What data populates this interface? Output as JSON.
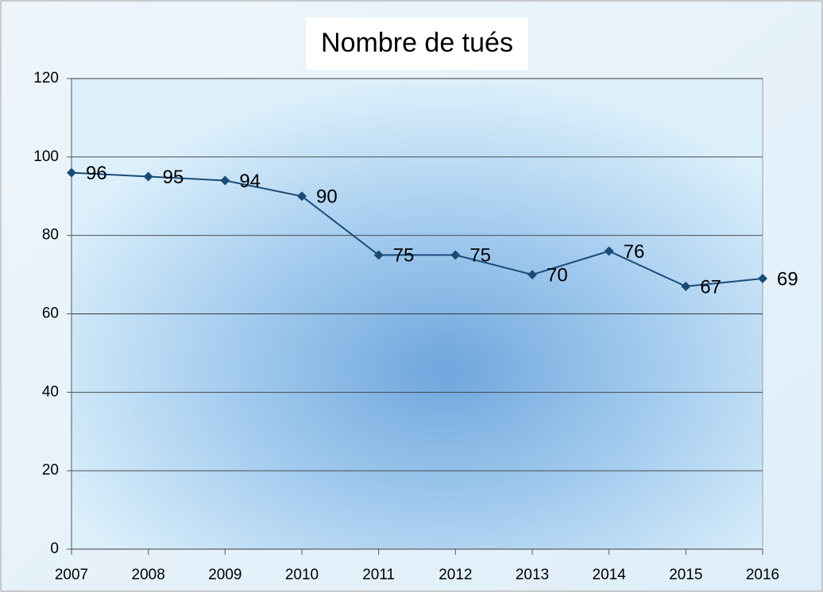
{
  "chart_data": {
    "type": "line",
    "title": "Nombre de tués",
    "categories": [
      "2007",
      "2008",
      "2009",
      "2010",
      "2011",
      "2012",
      "2013",
      "2014",
      "2015",
      "2016"
    ],
    "series": [
      {
        "name": "Nombre de tués",
        "color": "#1b4a78",
        "values": [
          96,
          95,
          94,
          90,
          75,
          75,
          70,
          76,
          67,
          69
        ]
      }
    ],
    "ylim": [
      0,
      120
    ],
    "yticks": [
      0,
      20,
      40,
      60,
      80,
      100,
      120
    ],
    "grid": true,
    "data_labels": true
  }
}
